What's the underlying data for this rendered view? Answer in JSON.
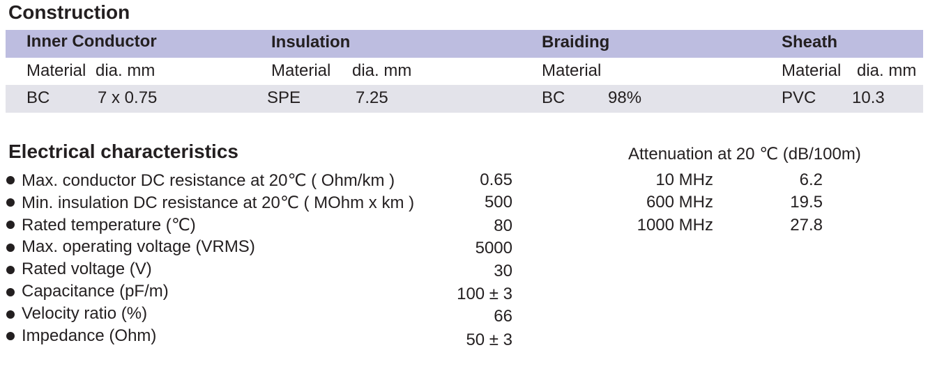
{
  "construction": {
    "title": "Construction",
    "columns": [
      {
        "header": "Inner Conductor",
        "sub1": "Material",
        "sub2": "dia. mm",
        "val1": "BC",
        "val2": "7 x 0.75"
      },
      {
        "header": "Insulation",
        "sub1": "Material",
        "sub2": "dia. mm",
        "val1": "SPE",
        "val2": "7.25"
      },
      {
        "header": "Braiding",
        "sub1": "Material",
        "sub2": "",
        "val1": "BC",
        "val2": "98%"
      },
      {
        "header": "Sheath",
        "sub1": "Material",
        "sub2": "dia. mm",
        "val1": "PVC",
        "val2": "10.3"
      }
    ],
    "colors": {
      "header_band": "#bdbde0",
      "value_band": "#e3e3ea"
    }
  },
  "electrical": {
    "title": "Electrical characteristics",
    "specs": [
      {
        "label": "Max. conductor DC resistance at 20℃ ( Ohm/km )",
        "value": "0.65"
      },
      {
        "label": "Min. insulation DC resistance at  20℃ ( MOhm x km )",
        "value": "500"
      },
      {
        "label": "Rated temperature (℃)",
        "value": "80"
      },
      {
        "label": "Max. operating voltage (VRMS)",
        "value": "5000"
      },
      {
        "label": "Rated voltage (V)",
        "value": "30"
      },
      {
        "label": "Capacitance (pF/m)",
        "value": "100 ± 3"
      },
      {
        "label": "Velocity ratio (%)",
        "value": "66"
      },
      {
        "label": "Impedance (Ohm)",
        "value": "50 ± 3"
      }
    ]
  },
  "attenuation": {
    "title": "Attenuation at 20 ℃ (dB/100m)",
    "rows": [
      {
        "freq": "10 MHz",
        "value": "6.2"
      },
      {
        "freq": "600 MHz",
        "value": "19.5"
      },
      {
        "freq": "1000 MHz",
        "value": "27.8"
      }
    ]
  }
}
